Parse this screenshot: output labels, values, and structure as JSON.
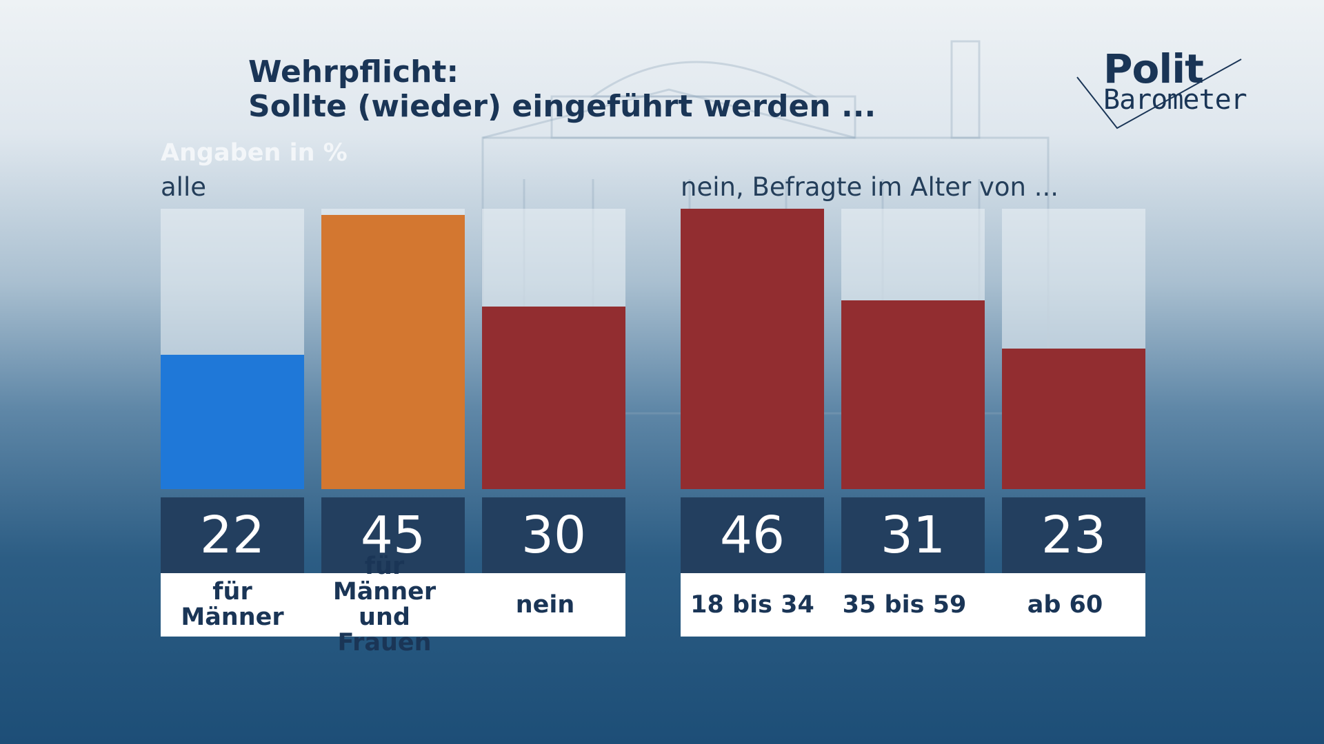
{
  "title_line1": "Wehrpflicht:",
  "title_line2": "Sollte (wieder) eingeführt werden ...",
  "unit_label": "Angaben in %",
  "logo": {
    "top": "Polit",
    "bottom": "Barometer"
  },
  "colors": {
    "blue": "#1f78d8",
    "orange": "#d37730",
    "red": "#922d30",
    "value_box": "#233f5f"
  },
  "chart_data": [
    {
      "type": "bar",
      "group_label": "alle",
      "categories": [
        "für Männer",
        "für Männer und Frauen",
        "nein"
      ],
      "values": [
        22,
        45,
        30
      ],
      "colors": [
        "#1f78d8",
        "#d37730",
        "#922d30"
      ],
      "ylim": [
        0,
        46
      ]
    },
    {
      "type": "bar",
      "group_label": "nein, Befragte im Alter von ...",
      "categories": [
        "18 bis 34",
        "35 bis 59",
        "ab 60"
      ],
      "values": [
        46,
        31,
        23
      ],
      "colors": [
        "#922d30",
        "#922d30",
        "#922d30"
      ],
      "ylim": [
        0,
        46
      ]
    }
  ]
}
